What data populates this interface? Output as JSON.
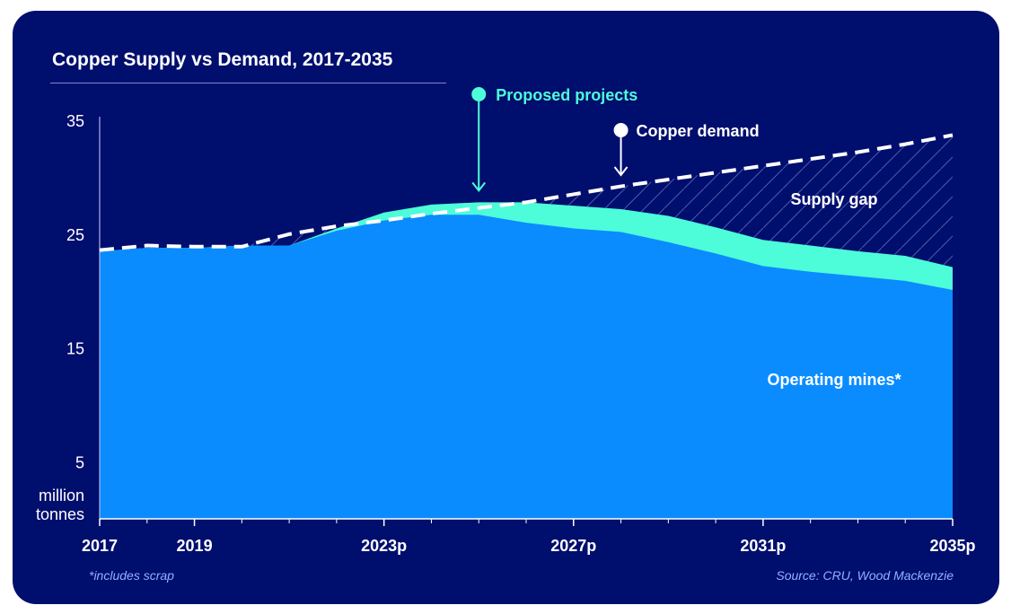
{
  "colors": {
    "background": "#000e6e",
    "operating_mines": "#0a8cff",
    "proposed_projects": "#4dfcd8",
    "demand_line": "#ffffff",
    "gridline": "#aeb4e0",
    "footnote": "#8fb2ff"
  },
  "chart_data": {
    "type": "area",
    "title": "Copper Supply vs Demand, 2017-2035",
    "ylabel": "million tonnes",
    "ylim": [
      0,
      35
    ],
    "yticks": [
      5,
      15,
      25,
      35
    ],
    "xlim": [
      2017,
      2035
    ],
    "xticks": [
      {
        "value": 2017,
        "label": "2017"
      },
      {
        "value": 2019,
        "label": "2019"
      },
      {
        "value": 2023,
        "label": "2023p"
      },
      {
        "value": 2027,
        "label": "2027p"
      },
      {
        "value": 2031,
        "label": "2031p"
      },
      {
        "value": 2035,
        "label": "2035p"
      }
    ],
    "minor_ticks": [
      2018,
      2020,
      2021,
      2022,
      2024,
      2025,
      2026,
      2028,
      2029,
      2030,
      2032,
      2033,
      2034
    ],
    "x": [
      2017,
      2018,
      2019,
      2020,
      2021,
      2022,
      2023,
      2024,
      2025,
      2026,
      2027,
      2028,
      2029,
      2030,
      2031,
      2032,
      2033,
      2034,
      2035
    ],
    "series": [
      {
        "name": "Operating mines*",
        "values": [
          23.5,
          23.8,
          23.8,
          24.0,
          24.0,
          25.3,
          26.2,
          26.7,
          26.7,
          26.0,
          25.5,
          25.2,
          24.3,
          23.3,
          22.2,
          21.7,
          21.3,
          20.9,
          20.1
        ]
      },
      {
        "name": "Proposed projects",
        "values": [
          23.5,
          23.8,
          23.8,
          24.0,
          24.0,
          25.5,
          26.9,
          27.6,
          27.8,
          27.8,
          27.5,
          27.2,
          26.6,
          25.6,
          24.5,
          24.0,
          23.5,
          23.1,
          22.1
        ]
      },
      {
        "name": "Copper demand",
        "values": [
          23.6,
          24.0,
          23.9,
          23.9,
          25.0,
          25.7,
          26.2,
          26.8,
          27.3,
          27.8,
          28.5,
          29.2,
          29.8,
          30.4,
          31.0,
          31.6,
          32.2,
          32.9,
          33.7
        ]
      }
    ],
    "annotations": {
      "proposed_projects": {
        "label": "Proposed projects",
        "x": 2025,
        "y": 27.8
      },
      "copper_demand": {
        "label": "Copper demand",
        "x": 2028,
        "y": 29.3
      },
      "supply_gap": {
        "label": "Supply gap",
        "x": 2032.5,
        "y": 28.0
      },
      "operating_mines": {
        "label": "Operating mines*",
        "x": 2032.5,
        "y": 12.2
      }
    },
    "footnote": "*includes scrap",
    "source": "Source: CRU, Wood Mackenzie"
  }
}
